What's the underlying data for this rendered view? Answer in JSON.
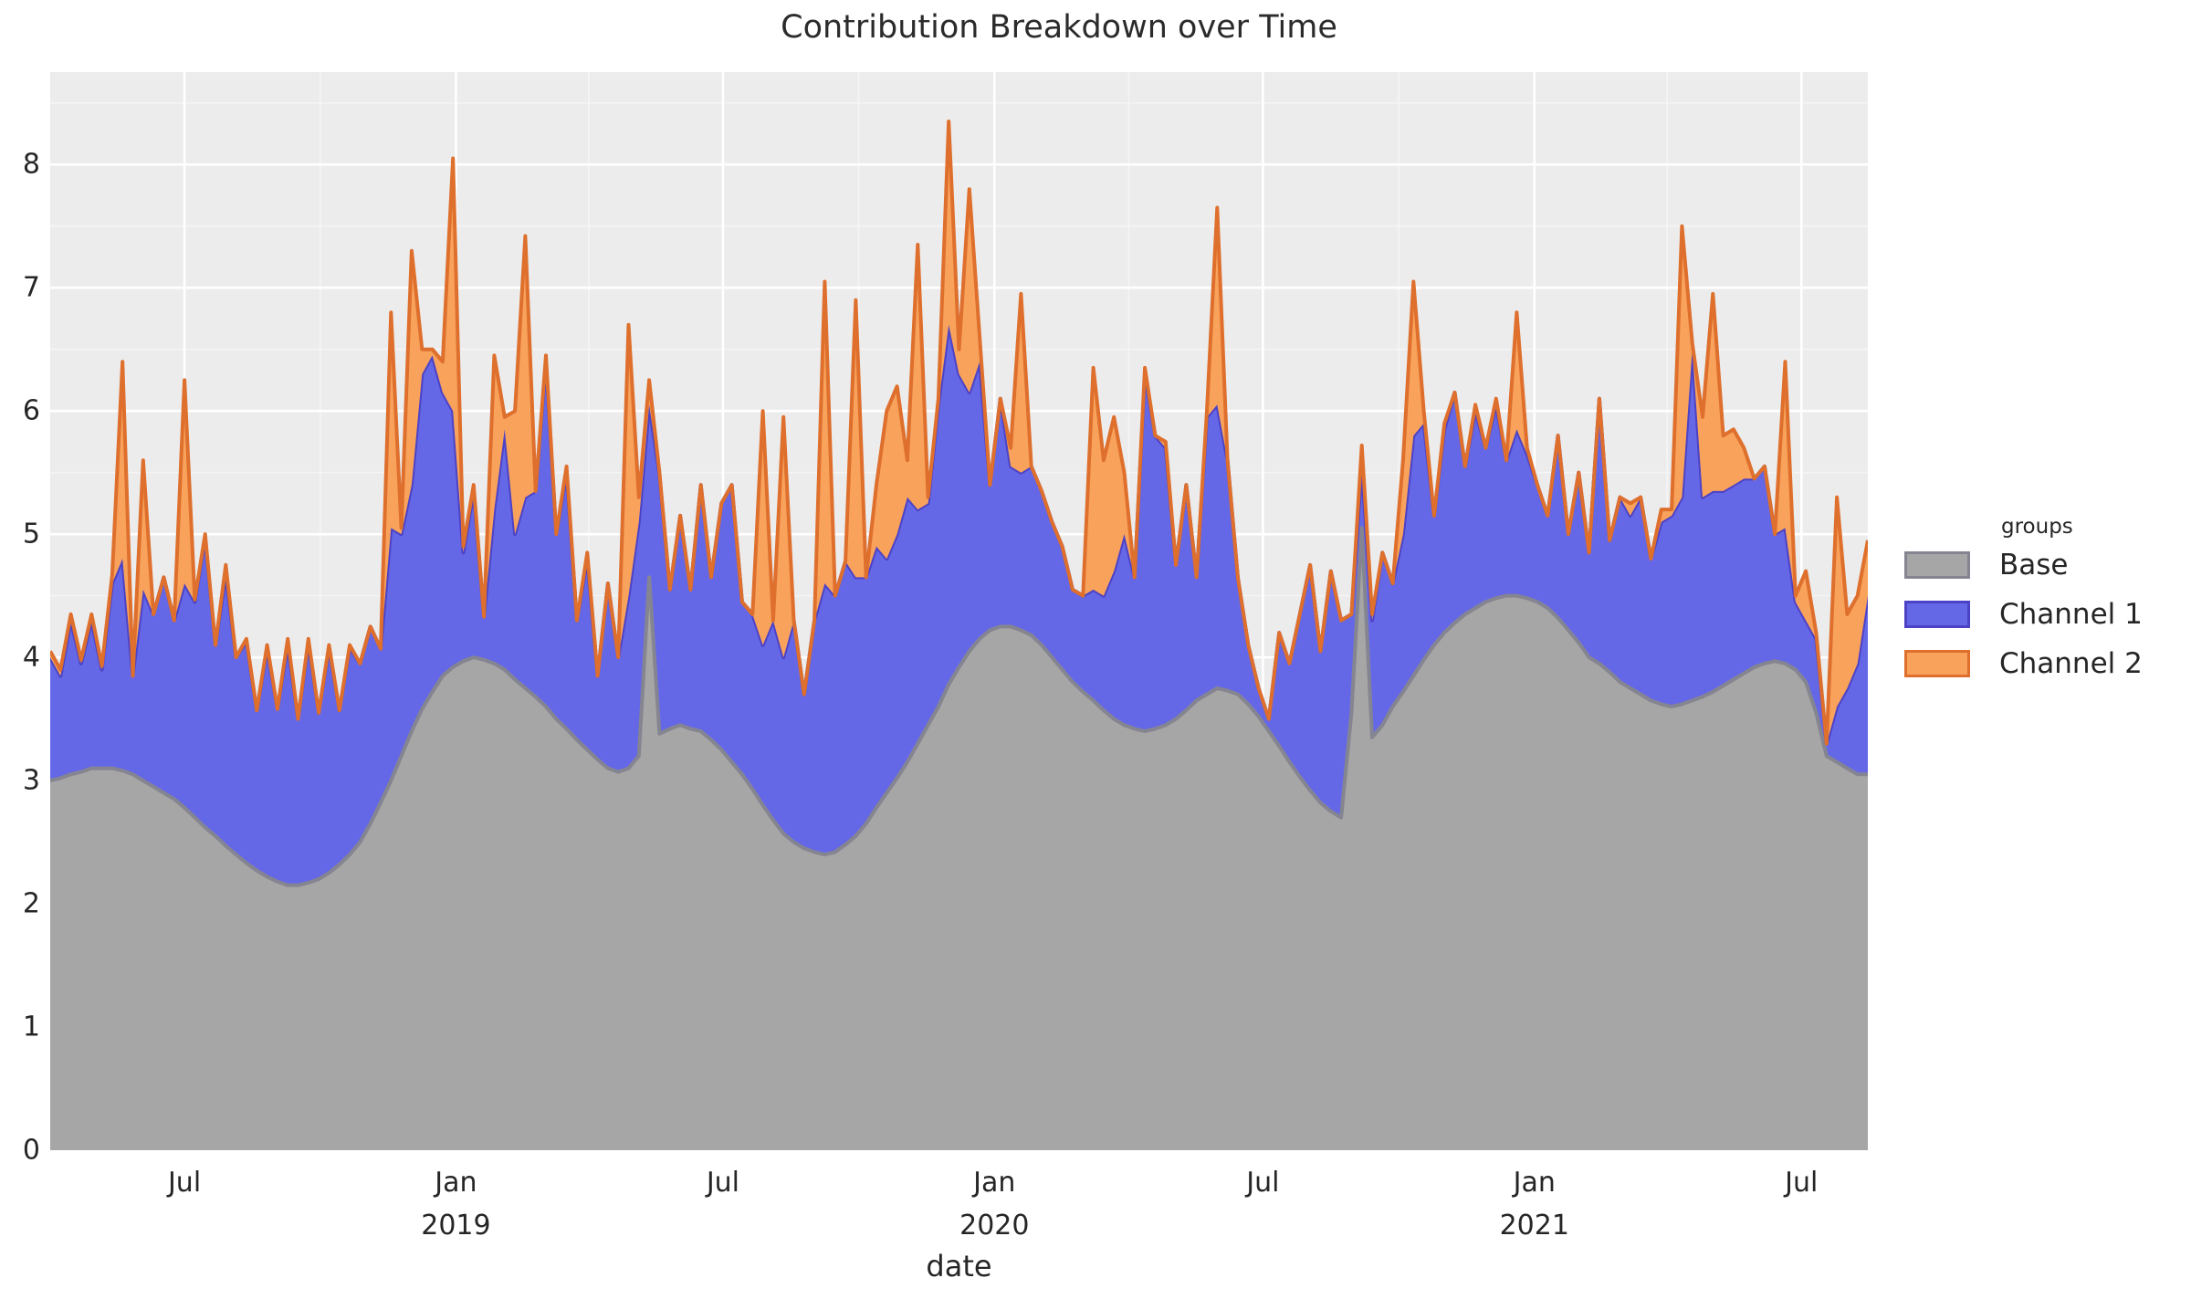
{
  "title": "Contribution Breakdown over Time",
  "x_axis": {
    "label": "date",
    "ticks": [
      {
        "label": "Jul",
        "year": ""
      },
      {
        "label": "Jan",
        "year": "2019"
      },
      {
        "label": "Jul",
        "year": ""
      },
      {
        "label": "Jan",
        "year": "2020"
      },
      {
        "label": "Jul",
        "year": ""
      },
      {
        "label": "Jan",
        "year": "2021"
      },
      {
        "label": "Jul",
        "year": ""
      }
    ]
  },
  "y_axis": {
    "tick_labels": [
      "0",
      "1",
      "2",
      "3",
      "4",
      "5",
      "6",
      "7",
      "8"
    ]
  },
  "legend": {
    "title": "groups",
    "items": [
      {
        "label": "Base",
        "fill": "#A6A6A6",
        "stroke": "#858591"
      },
      {
        "label": "Channel 1",
        "fill": "#6568E6",
        "stroke": "#4C42C6"
      },
      {
        "label": "Channel 2",
        "fill": "#F8A25C",
        "stroke": "#DE6F2C"
      }
    ]
  },
  "colors": {
    "panel_background": "#ECECEC",
    "grid_major": "#FFFFFF",
    "grid_minor": "#F5F5F5",
    "text": "#262626",
    "base_fill": "#A6A6A6",
    "base_stroke": "#858591",
    "channel1_fill": "#6568E6",
    "channel1_stroke": "#4C42C6",
    "channel2_fill": "#F8A25C",
    "channel2_stroke": "#DE6F2C"
  },
  "chart_data": {
    "type": "area",
    "stacked": true,
    "title": "Contribution Breakdown over Time",
    "xlabel": "date",
    "ylabel": "",
    "legend_position": "right",
    "grid": true,
    "start_date": "2018-04-01",
    "frequency": "weekly",
    "n_points": 177,
    "total_days": 1232,
    "ylim": [
      0,
      8.75
    ],
    "y_breaks": [
      0,
      1,
      2,
      3,
      4,
      5,
      6,
      7,
      8
    ],
    "x_tick_days": [
      91,
      275,
      456,
      640,
      822,
      1006,
      1187
    ],
    "x_minor_tick_days": [
      183,
      365,
      548,
      731,
      914,
      1096
    ],
    "series": [
      {
        "name": "Base",
        "values": [
          3.0,
          3.02,
          3.05,
          3.07,
          3.1,
          3.1,
          3.1,
          3.08,
          3.05,
          3.0,
          2.95,
          2.9,
          2.85,
          2.78,
          2.7,
          2.62,
          2.55,
          2.47,
          2.4,
          2.33,
          2.27,
          2.22,
          2.18,
          2.15,
          2.15,
          2.17,
          2.2,
          2.25,
          2.32,
          2.4,
          2.5,
          2.65,
          2.82,
          3.0,
          3.2,
          3.4,
          3.58,
          3.72,
          3.85,
          3.92,
          3.97,
          4.0,
          3.98,
          3.95,
          3.9,
          3.82,
          3.75,
          3.68,
          3.6,
          3.5,
          3.42,
          3.33,
          3.25,
          3.17,
          3.1,
          3.07,
          3.1,
          3.2,
          4.65,
          3.38,
          3.42,
          3.45,
          3.42,
          3.4,
          3.33,
          3.25,
          3.15,
          3.05,
          2.93,
          2.8,
          2.68,
          2.57,
          2.5,
          2.45,
          2.42,
          2.4,
          2.42,
          2.48,
          2.55,
          2.65,
          2.78,
          2.9,
          3.02,
          3.15,
          3.3,
          3.45,
          3.6,
          3.78,
          3.92,
          4.05,
          4.15,
          4.22,
          4.25,
          4.25,
          4.22,
          4.18,
          4.1,
          4.0,
          3.9,
          3.8,
          3.72,
          3.65,
          3.57,
          3.5,
          3.45,
          3.42,
          3.4,
          3.42,
          3.45,
          3.5,
          3.57,
          3.65,
          3.7,
          3.75,
          3.73,
          3.7,
          3.62,
          3.52,
          3.4,
          3.28,
          3.15,
          3.03,
          2.92,
          2.82,
          2.75,
          2.7,
          3.55,
          5.05,
          3.35,
          3.45,
          3.6,
          3.72,
          3.85,
          3.98,
          4.1,
          4.2,
          4.28,
          4.35,
          4.4,
          4.45,
          4.48,
          4.5,
          4.5,
          4.48,
          4.45,
          4.4,
          4.32,
          4.22,
          4.12,
          4.0,
          3.95,
          3.88,
          3.8,
          3.75,
          3.7,
          3.65,
          3.62,
          3.6,
          3.62,
          3.65,
          3.68,
          3.72,
          3.77,
          3.82,
          3.87,
          3.92,
          3.95,
          3.97,
          3.95,
          3.9,
          3.8,
          3.55,
          3.2,
          3.15,
          3.1,
          3.05,
          3.05
        ]
      },
      {
        "name": "Channel 1",
        "values": [
          1.0,
          0.83,
          1.25,
          0.88,
          1.2,
          0.8,
          1.5,
          1.72,
          0.8,
          1.55,
          1.4,
          1.75,
          1.45,
          1.82,
          1.75,
          2.35,
          1.55,
          2.2,
          1.6,
          1.8,
          1.3,
          1.85,
          1.4,
          1.95,
          1.35,
          1.95,
          1.35,
          1.83,
          1.25,
          1.68,
          1.45,
          1.6,
          1.25,
          2.05,
          1.8,
          2.0,
          2.72,
          2.73,
          2.3,
          2.08,
          0.88,
          1.35,
          0.35,
          1.25,
          1.95,
          1.18,
          1.55,
          1.67,
          2.8,
          1.5,
          2.08,
          0.97,
          1.55,
          0.68,
          1.5,
          0.93,
          1.4,
          1.9,
          1.4,
          2.1,
          1.13,
          1.7,
          1.13,
          2.0,
          1.32,
          2.0,
          2.25,
          1.4,
          1.42,
          1.3,
          1.62,
          1.43,
          1.8,
          1.25,
          1.88,
          2.2,
          2.08,
          2.3,
          2.1,
          2.0,
          2.12,
          1.9,
          1.98,
          2.15,
          1.9,
          1.8,
          2.45,
          2.92,
          2.38,
          2.1,
          2.25,
          1.18,
          1.85,
          1.3,
          1.28,
          1.37,
          1.25,
          1.1,
          1.0,
          0.75,
          0.78,
          0.9,
          0.93,
          1.2,
          1.55,
          1.23,
          2.9,
          2.38,
          2.25,
          1.25,
          1.83,
          1.0,
          2.25,
          2.3,
          1.87,
          0.95,
          0.48,
          0.23,
          0.1,
          0.92,
          0.8,
          1.32,
          1.83,
          1.23,
          1.95,
          1.6,
          0.8,
          0.5,
          0.95,
          1.4,
          1.0,
          1.28,
          1.95,
          1.92,
          1.05,
          1.65,
          1.87,
          1.2,
          1.6,
          1.25,
          1.57,
          1.1,
          1.35,
          1.17,
          0.95,
          0.75,
          1.48,
          0.78,
          1.38,
          0.85,
          2.15,
          1.07,
          1.5,
          1.4,
          1.6,
          1.15,
          1.48,
          1.55,
          1.68,
          2.85,
          1.62,
          1.63,
          1.58,
          1.58,
          1.58,
          1.53,
          1.6,
          1.03,
          1.1,
          0.55,
          0.5,
          0.6,
          0.1,
          0.45,
          0.65,
          0.9,
          1.45
        ]
      },
      {
        "name": "Channel 2",
        "values": [
          0.05,
          0.05,
          0.05,
          0.03,
          0.05,
          0.03,
          0.07,
          1.6,
          0.0,
          1.05,
          0.0,
          0.0,
          0.0,
          1.65,
          0.02,
          0.03,
          0.0,
          0.08,
          0.0,
          0.02,
          0.0,
          0.03,
          0.0,
          0.05,
          0.0,
          0.03,
          0.0,
          0.02,
          0.0,
          0.02,
          0.0,
          0.0,
          0.0,
          1.75,
          0.05,
          1.9,
          0.2,
          0.05,
          0.25,
          2.05,
          0.05,
          0.05,
          0.0,
          1.25,
          0.1,
          1.0,
          2.12,
          0.0,
          0.05,
          0.0,
          0.05,
          0.0,
          0.05,
          0.0,
          0.0,
          0.0,
          2.2,
          0.2,
          0.2,
          0.02,
          0.0,
          0.0,
          0.0,
          0.0,
          0.0,
          0.0,
          0.0,
          0.0,
          0.0,
          1.9,
          0.0,
          1.95,
          0.0,
          0.0,
          0.0,
          2.45,
          0.0,
          0.0,
          2.25,
          0.0,
          0.5,
          1.2,
          1.2,
          0.3,
          2.15,
          0.05,
          0.05,
          1.65,
          0.2,
          1.65,
          0.2,
          0.0,
          0.0,
          0.15,
          1.45,
          0.0,
          0.0,
          0.0,
          0.0,
          0.0,
          0.0,
          1.8,
          1.1,
          1.25,
          0.5,
          0.0,
          0.05,
          0.0,
          0.05,
          0.0,
          0.0,
          0.0,
          0.05,
          1.6,
          0.0,
          0.0,
          0.0,
          0.0,
          0.0,
          0.0,
          0.0,
          0.0,
          0.0,
          0.0,
          0.0,
          0.0,
          0.0,
          0.17,
          0.05,
          0.0,
          0.0,
          0.6,
          1.25,
          0.1,
          0.0,
          0.05,
          0.0,
          0.0,
          0.05,
          0.0,
          0.05,
          0.0,
          0.95,
          0.05,
          0.0,
          0.0,
          0.0,
          0.0,
          0.0,
          0.0,
          0.0,
          0.0,
          0.0,
          0.1,
          0.0,
          0.0,
          0.1,
          0.05,
          2.2,
          0.05,
          0.65,
          1.6,
          0.45,
          0.45,
          0.25,
          0.0,
          0.0,
          0.0,
          1.35,
          0.05,
          0.4,
          0.05,
          0.0,
          1.7,
          0.6,
          0.55,
          0.45
        ]
      }
    ]
  }
}
